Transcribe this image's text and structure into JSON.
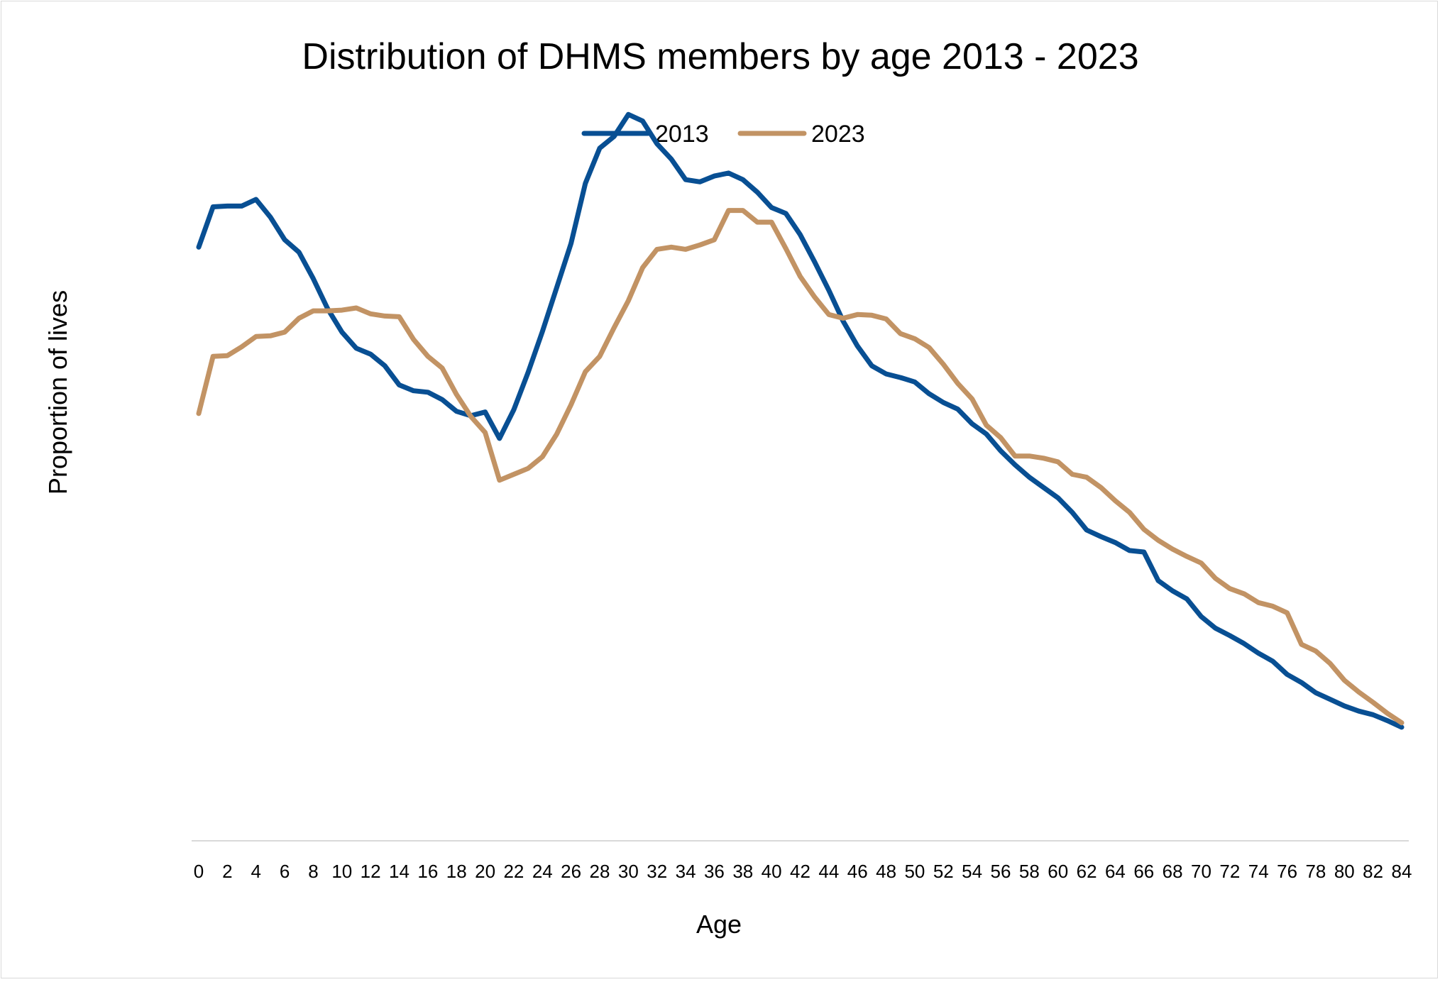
{
  "chart_data": {
    "type": "line",
    "title": "Distribution of DHMS members by age 2013 - 2023",
    "xlabel": "Age",
    "ylabel": "Proportion of lives",
    "legend_position": "top",
    "grid": false,
    "y_axis_labels_shown": false,
    "x": [
      0,
      1,
      2,
      3,
      4,
      5,
      6,
      7,
      8,
      9,
      10,
      11,
      12,
      13,
      14,
      15,
      16,
      17,
      18,
      19,
      20,
      21,
      22,
      23,
      24,
      25,
      26,
      27,
      28,
      29,
      30,
      31,
      32,
      33,
      34,
      35,
      36,
      37,
      38,
      39,
      40,
      41,
      42,
      43,
      44,
      45,
      46,
      47,
      48,
      49,
      50,
      51,
      52,
      53,
      54,
      55,
      56,
      57,
      58,
      59,
      60,
      61,
      62,
      63,
      64,
      65,
      66,
      67,
      68,
      69,
      70,
      71,
      72,
      73,
      74,
      75,
      76,
      77,
      78,
      79,
      80,
      81,
      82,
      83,
      84
    ],
    "x_tick_labels": [
      "0",
      "2",
      "4",
      "6",
      "8",
      "10",
      "12",
      "14",
      "16",
      "18",
      "20",
      "22",
      "24",
      "26",
      "28",
      "30",
      "32",
      "34",
      "36",
      "38",
      "40",
      "42",
      "44",
      "46",
      "48",
      "50",
      "52",
      "54",
      "56",
      "58",
      "60",
      "62",
      "64",
      "66",
      "68",
      "70",
      "72",
      "74",
      "76",
      "78",
      "80",
      "82",
      "84"
    ],
    "ylim": [
      0,
      1000
    ],
    "series": [
      {
        "name": "2013",
        "color": "#084F93",
        "values": [
          810,
          865,
          866,
          866,
          875,
          851,
          820,
          803,
          767,
          726,
          694,
          672,
          664,
          648,
          622,
          614,
          612,
          602,
          586,
          580,
          585,
          549,
          588,
          639,
          695,
          755,
          815,
          897,
          945,
          961,
          991,
          982,
          951,
          930,
          902,
          899,
          907,
          911,
          902,
          885,
          864,
          856,
          827,
          790,
          751,
          709,
          675,
          648,
          637,
          632,
          626,
          610,
          598,
          589,
          569,
          555,
          532,
          513,
          496,
          482,
          468,
          448,
          424,
          415,
          407,
          396,
          394,
          355,
          341,
          330,
          306,
          290,
          280,
          269,
          256,
          245,
          227,
          216,
          202,
          193,
          184,
          177,
          172,
          164,
          155
        ]
      },
      {
        "name": "2023",
        "color": "#C29364",
        "values": [
          583,
          661,
          662,
          674,
          688,
          689,
          694,
          713,
          723,
          723,
          724,
          727,
          719,
          716,
          715,
          684,
          661,
          645,
          609,
          579,
          557,
          492,
          500,
          508,
          524,
          555,
          595,
          640,
          661,
          700,
          737,
          782,
          807,
          810,
          807,
          813,
          820,
          860,
          860,
          844,
          844,
          808,
          770,
          742,
          718,
          713,
          718,
          717,
          712,
          692,
          685,
          673,
          650,
          624,
          603,
          567,
          550,
          525,
          525,
          522,
          517,
          500,
          496,
          482,
          464,
          448,
          425,
          410,
          398,
          388,
          379,
          358,
          344,
          337,
          325,
          320,
          311,
          268,
          259,
          242,
          219,
          203,
          189,
          174,
          161
        ]
      }
    ]
  }
}
